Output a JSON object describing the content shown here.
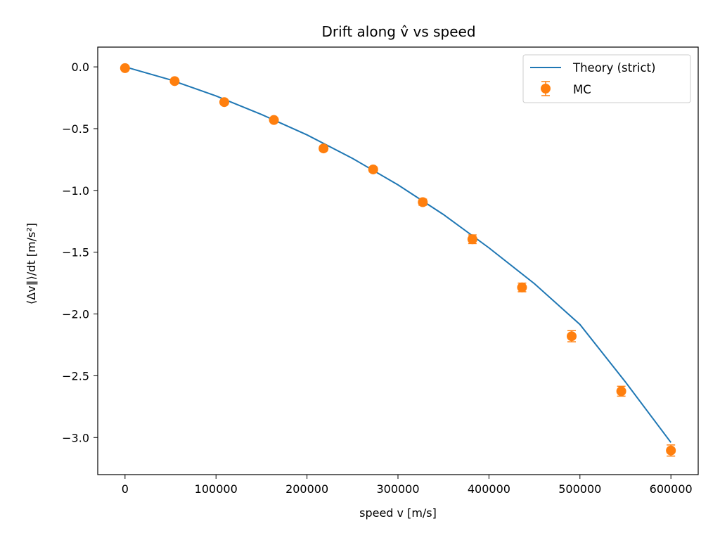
{
  "chart_data": {
    "type": "line",
    "title": "Drift along v̂ vs speed",
    "xlabel": "speed v [m/s]",
    "ylabel": "⟨Δv∥⟩/dt  [m/s²]",
    "xlim": [
      -30000,
      630000
    ],
    "ylim": [
      -3.3,
      0.16
    ],
    "xticks": [
      0,
      100000,
      200000,
      300000,
      400000,
      500000,
      600000
    ],
    "xtick_labels": [
      "0",
      "100000",
      "200000",
      "300000",
      "400000",
      "500000",
      "600000"
    ],
    "yticks": [
      0.0,
      -0.5,
      -1.0,
      -1.5,
      -2.0,
      -2.5,
      -3.0
    ],
    "ytick_labels": [
      "0.0",
      "−0.5",
      "−1.0",
      "−1.5",
      "−2.0",
      "−2.5",
      "−3.0"
    ],
    "grid": false,
    "legend_position": "top-right",
    "series": [
      {
        "name": "Theory (strict)",
        "kind": "line",
        "color": "#1f77b4",
        "x": [
          0,
          50000,
          100000,
          150000,
          200000,
          250000,
          300000,
          350000,
          400000,
          450000,
          500000,
          550000,
          600000
        ],
        "y": [
          0.0,
          -0.105,
          -0.235,
          -0.385,
          -0.55,
          -0.74,
          -0.955,
          -1.195,
          -1.465,
          -1.755,
          -2.085,
          -2.55,
          -3.04
        ]
      },
      {
        "name": "MC",
        "kind": "errorbar",
        "color": "#ff7f0e",
        "x": [
          0,
          54545,
          109091,
          163636,
          218182,
          272727,
          327273,
          381818,
          436364,
          490909,
          545455,
          600000
        ],
        "y": [
          -0.01,
          -0.115,
          -0.285,
          -0.43,
          -0.66,
          -0.83,
          -1.095,
          -1.395,
          -1.785,
          -2.18,
          -2.625,
          -3.105
        ],
        "yerr": [
          0.01,
          0.015,
          0.015,
          0.015,
          0.02,
          0.02,
          0.025,
          0.035,
          0.035,
          0.045,
          0.04,
          0.045
        ]
      }
    ]
  }
}
